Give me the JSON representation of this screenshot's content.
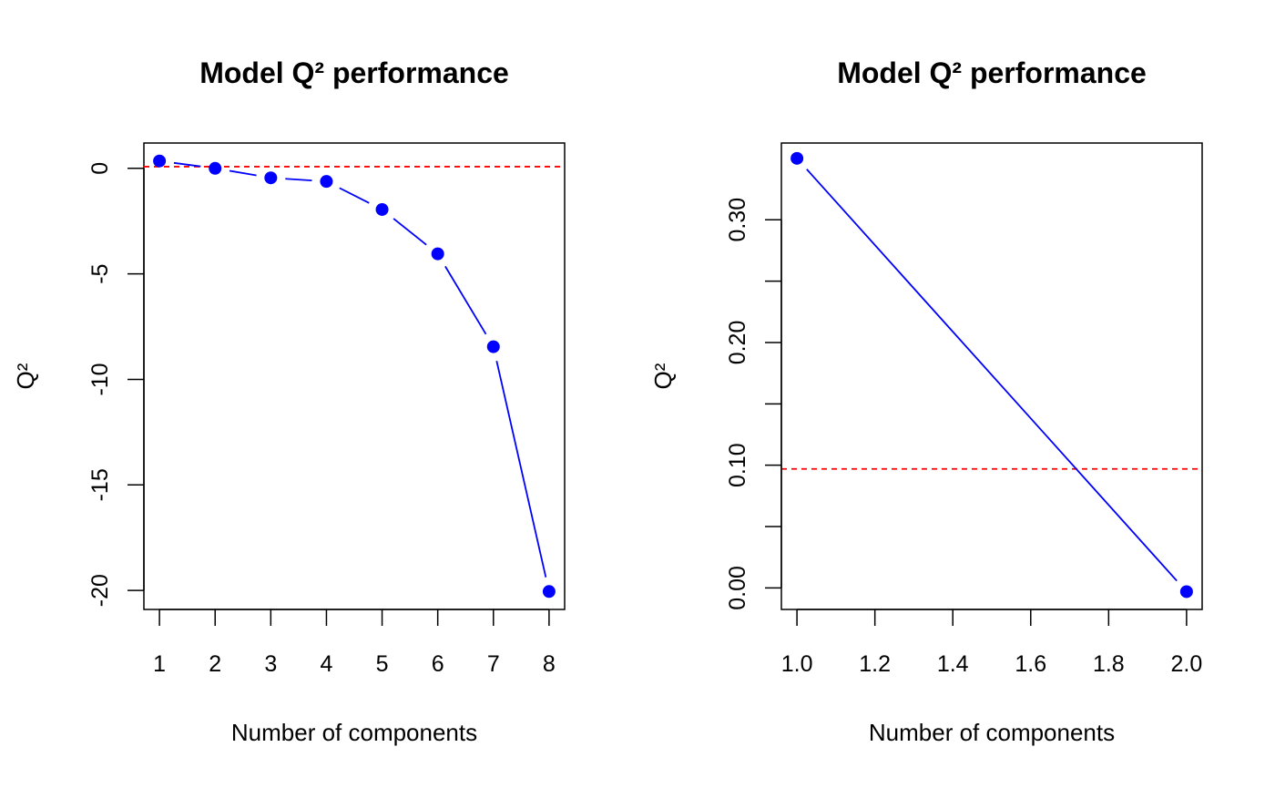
{
  "chart_data": [
    {
      "type": "line",
      "title": "Model Q² performance",
      "xlabel": "Number of components",
      "ylabel": "Q²",
      "xlim": [
        0.72,
        8.28
      ],
      "ylim": [
        -20.9,
        1.2
      ],
      "x_ticks": [
        1,
        2,
        3,
        4,
        5,
        6,
        7,
        8
      ],
      "x_tick_labels": [
        "1",
        "2",
        "3",
        "4",
        "5",
        "6",
        "7",
        "8"
      ],
      "y_ticks": [
        0,
        -5,
        -10,
        -15,
        -20
      ],
      "y_tick_labels": [
        "0",
        "-5",
        "-10",
        "-15",
        "-20"
      ],
      "series": [
        {
          "x": [
            1,
            2,
            3,
            4,
            5,
            6,
            7,
            8
          ],
          "values": [
            0.35,
            0.0,
            -0.45,
            -0.62,
            -1.95,
            -4.05,
            -8.45,
            -20.05
          ]
        }
      ],
      "reference_line": {
        "y": 0.08,
        "style": "dashed"
      },
      "colors": {
        "series": "#0000ff",
        "reference": "#ff0000"
      },
      "grid": false,
      "legend": "none"
    },
    {
      "type": "line",
      "title": "Model Q² performance",
      "xlabel": "Number of components",
      "ylabel": "Q²",
      "xlim": [
        0.96,
        2.04
      ],
      "ylim": [
        -0.0175,
        0.3625
      ],
      "x_ticks": [
        1.0,
        1.2,
        1.4,
        1.6,
        1.8,
        2.0
      ],
      "x_tick_labels": [
        "1.0",
        "1.2",
        "1.4",
        "1.6",
        "1.8",
        "2.0"
      ],
      "y_ticks": [
        0.0,
        0.05,
        0.1,
        0.15,
        0.2,
        0.25,
        0.3
      ],
      "y_tick_labels": [
        "0.00",
        "",
        "0.10",
        "",
        "0.20",
        "",
        "0.30"
      ],
      "series": [
        {
          "x": [
            1,
            2
          ],
          "values": [
            0.35,
            -0.003
          ]
        }
      ],
      "reference_line": {
        "y": 0.097,
        "style": "dashed"
      },
      "colors": {
        "series": "#0000ff",
        "reference": "#ff0000"
      },
      "grid": false,
      "legend": "none"
    }
  ]
}
